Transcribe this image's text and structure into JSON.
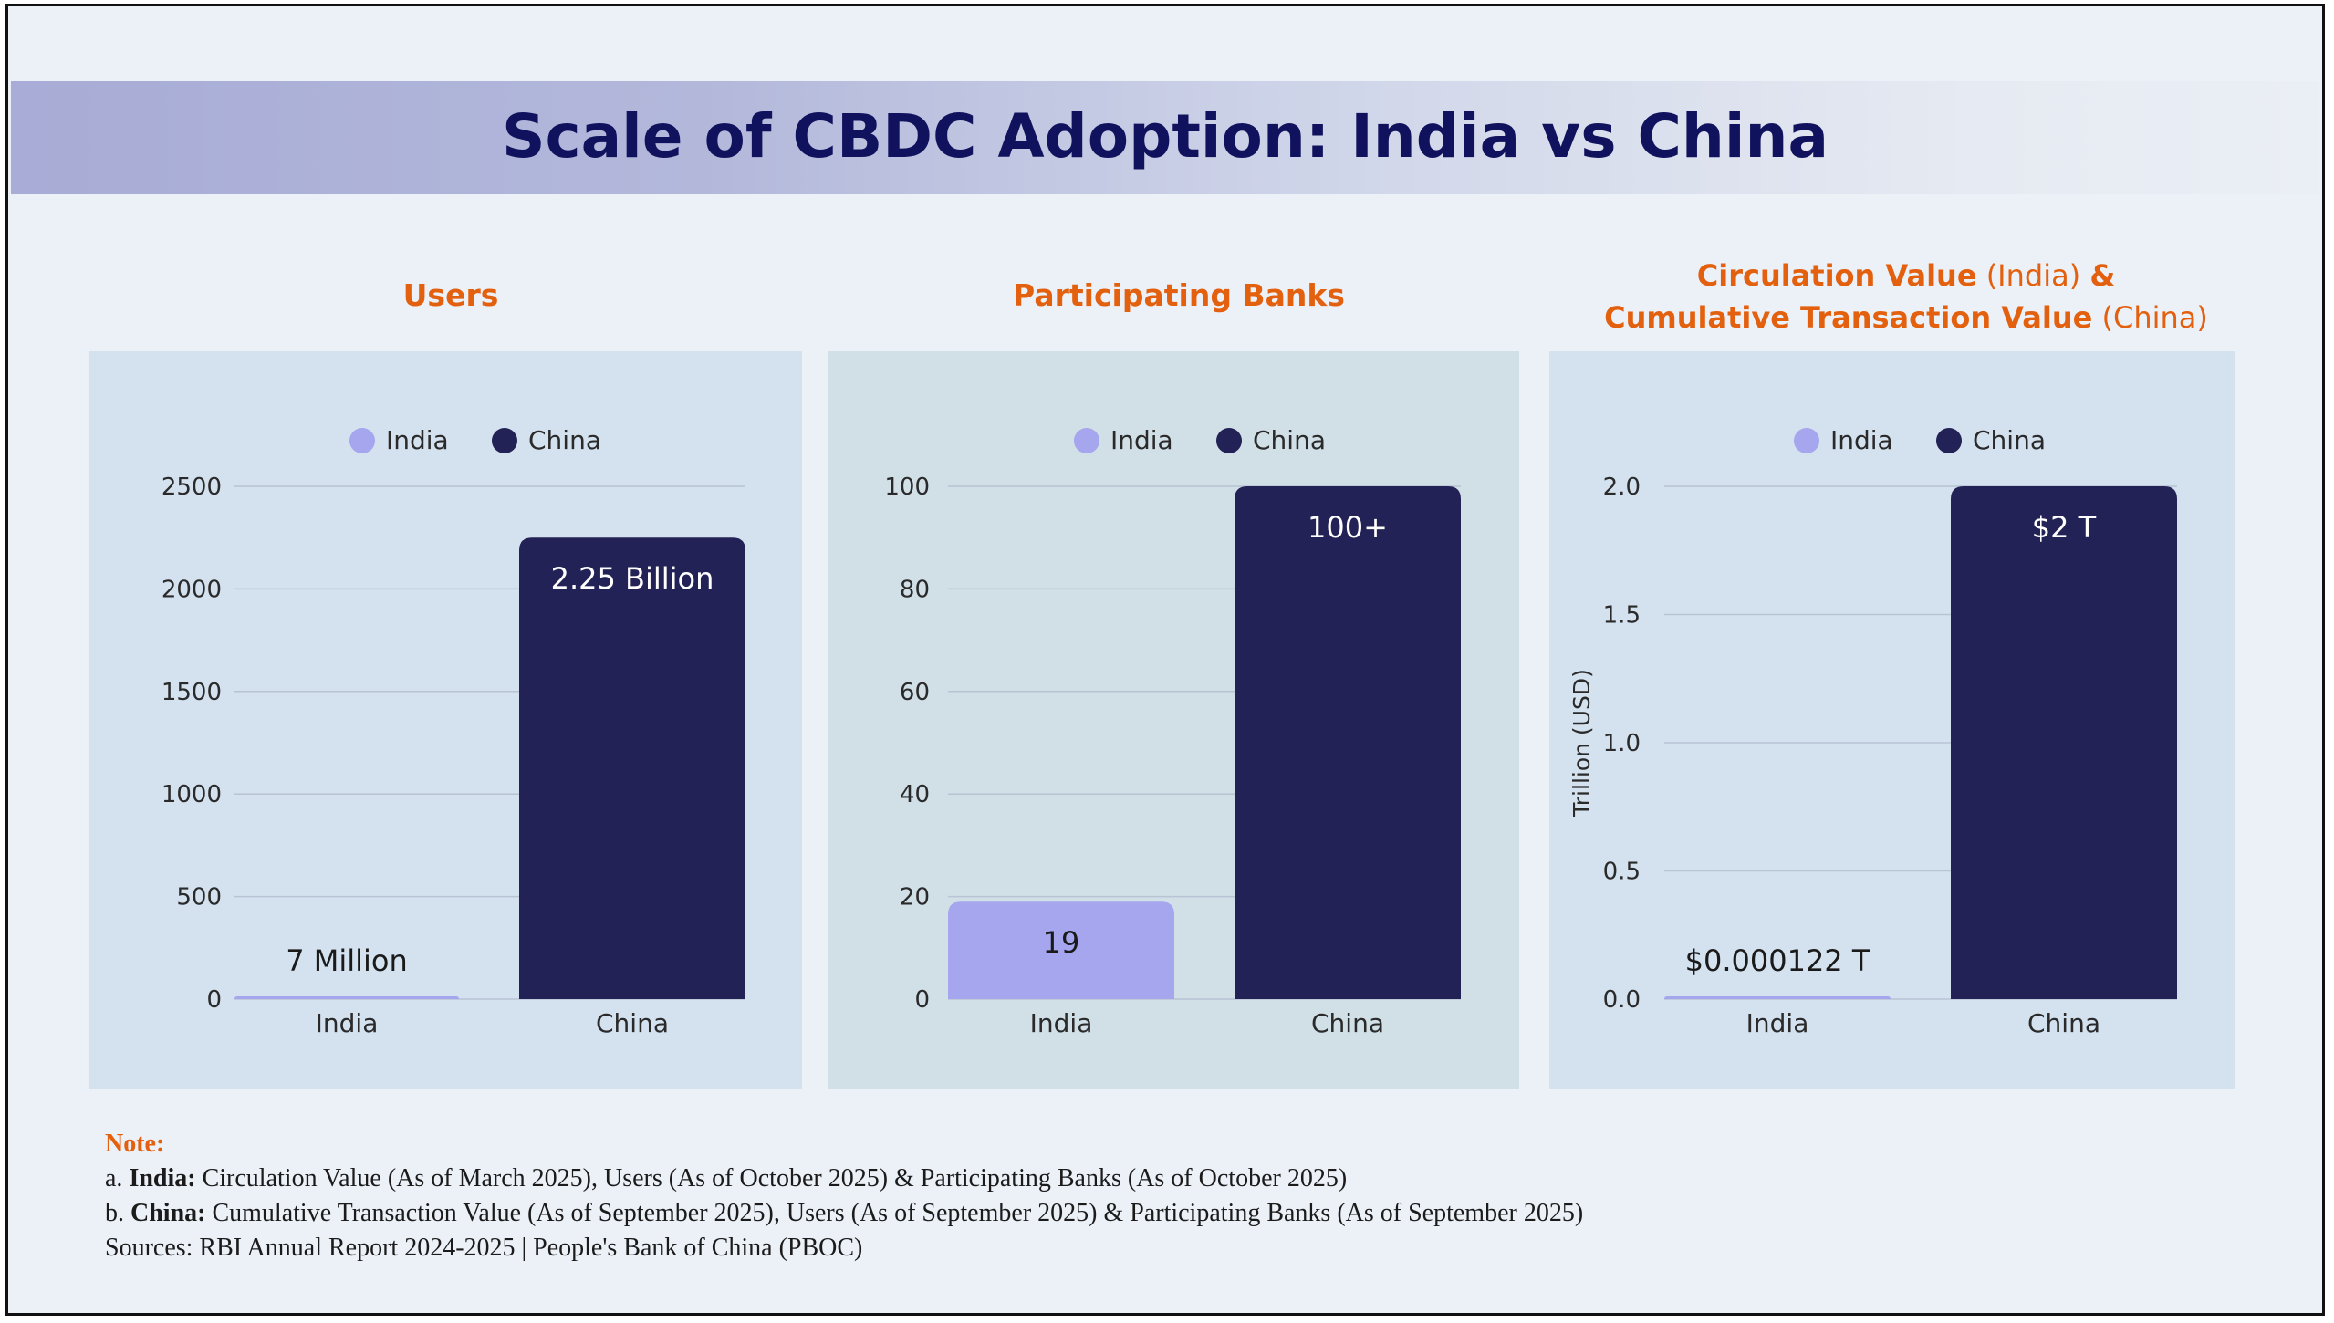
{
  "title": "Scale of CBDC Adoption: India vs China",
  "colors": {
    "india": "#a5a6ee",
    "china": "#222256",
    "accent": "#e3600f",
    "title": "#10125e"
  },
  "panels": [
    {
      "title_main": "Users"
    },
    {
      "title_main": "Participating Banks"
    },
    {
      "title_line1_bold": "Circulation Value",
      "title_line1_light": " (India) ",
      "title_line1_bold2": "&",
      "title_line2_bold": "Cumulative Transaction Value",
      "title_line2_light": " (China)"
    }
  ],
  "chart_data": [
    {
      "type": "bar",
      "title": "Users",
      "categories": [
        "India",
        "China"
      ],
      "legend": [
        "India",
        "China"
      ],
      "series": [
        {
          "values": [
            7,
            2250
          ]
        }
      ],
      "data_labels": [
        "7 Million",
        "2.25 Billion"
      ],
      "ylim": [
        0,
        2500
      ],
      "yticks": [
        0,
        500,
        1000,
        1500,
        2000,
        2500
      ],
      "ytick_labels": [
        "0",
        "500",
        "1000",
        "1500",
        "2000",
        "2500"
      ],
      "ylabel": "",
      "grid": true,
      "legend_position": "top"
    },
    {
      "type": "bar",
      "title": "Participating Banks",
      "categories": [
        "India",
        "China"
      ],
      "legend": [
        "India",
        "China"
      ],
      "series": [
        {
          "values": [
            19,
            100
          ]
        }
      ],
      "data_labels": [
        "19",
        "100+"
      ],
      "ylim": [
        0,
        100
      ],
      "yticks": [
        0,
        20,
        40,
        60,
        80,
        100
      ],
      "ytick_labels": [
        "0",
        "20",
        "40",
        "60",
        "80",
        "100"
      ],
      "ylabel": "",
      "grid": true,
      "legend_position": "top"
    },
    {
      "type": "bar",
      "title": "Circulation Value (India) & Cumulative Transaction Value (China)",
      "categories": [
        "India",
        "China"
      ],
      "legend": [
        "India",
        "China"
      ],
      "series": [
        {
          "values": [
            0.000122,
            2.0
          ]
        }
      ],
      "data_labels": [
        "$0.000122 T",
        "$2 T"
      ],
      "ylim": [
        0,
        2.0
      ],
      "yticks": [
        0,
        0.5,
        1.0,
        1.5,
        2.0
      ],
      "ytick_labels": [
        "0.0",
        "0.5",
        "1.0",
        "1.5",
        "2.0"
      ],
      "ylabel": "Trillion (USD)",
      "grid": true,
      "legend_position": "top"
    }
  ],
  "note": {
    "label": "Note:",
    "line_a_prefix": "a. ",
    "line_a_bold": "India:",
    "line_a_text": " Circulation Value (As of March 2025), Users (As of October 2025) & Participating Banks (As of October 2025)",
    "line_b_prefix": "b. ",
    "line_b_bold": "China:",
    "line_b_text": " Cumulative Transaction Value (As of September 2025), Users (As of September 2025) & Participating Banks (As of September 2025)",
    "sources": "Sources: RBI Annual Report 2024-2025 | People's Bank of China (PBOC)"
  }
}
